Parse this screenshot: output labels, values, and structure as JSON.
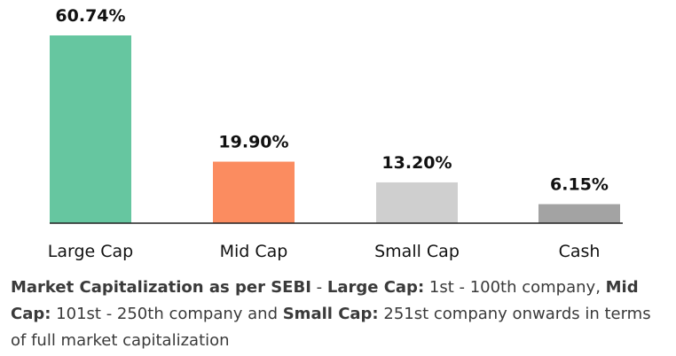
{
  "chart_data": {
    "type": "bar",
    "categories": [
      "Large Cap",
      "Mid Cap",
      "Small Cap",
      "Cash"
    ],
    "values": [
      60.74,
      19.9,
      13.2,
      6.15
    ],
    "value_labels": [
      "60.74%",
      "19.90%",
      "13.20%",
      "6.15%"
    ],
    "colors": [
      "#66c6a0",
      "#fb8c60",
      "#cfcfcf",
      "#a3a3a3"
    ],
    "ylim": [
      0,
      60.74
    ],
    "grid": false,
    "title": "",
    "xlabel": "",
    "ylabel": ""
  },
  "note": {
    "lead_bold": "Market Capitalization as per SEBI",
    "sep": " - ",
    "large_cap_label": "Large Cap:",
    "large_cap_text": " 1st - 100th company, ",
    "mid_cap_label": "Mid Cap:",
    "mid_cap_text": " 101st - 250th company and ",
    "small_cap_label": "Small Cap:",
    "small_cap_text": " 251st company onwards in terms of full market capitalization"
  }
}
